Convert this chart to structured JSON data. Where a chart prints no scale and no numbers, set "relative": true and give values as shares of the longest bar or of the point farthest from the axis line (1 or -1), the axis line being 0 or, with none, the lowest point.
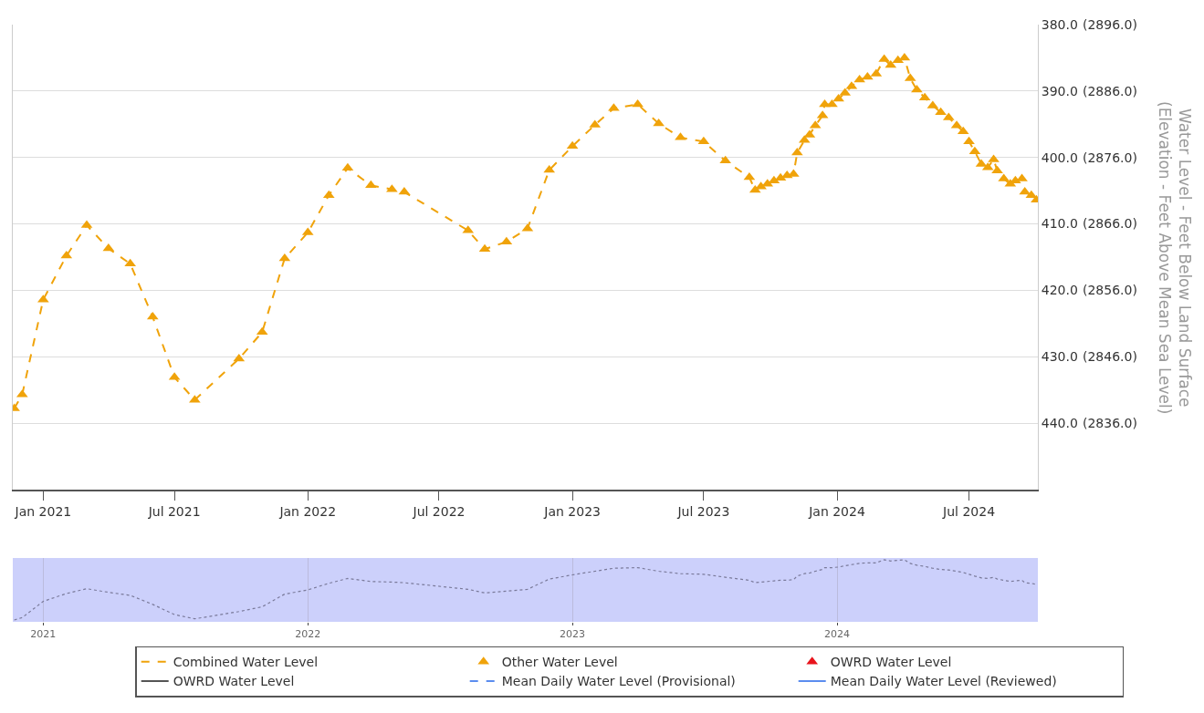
{
  "chart_data": [
    {
      "type": "line",
      "y2label": "Water Level - Feet Below Land Surface\n(Elevation - Feet Above Mean Sea Level)",
      "x": [
        "2020-11-22",
        "2020-12-03",
        "2021-01-01",
        "2021-02-02",
        "2021-03-02",
        "2021-04-01",
        "2021-05-01",
        "2021-06-01",
        "2021-07-01",
        "2021-07-29",
        "2021-09-28",
        "2021-10-30",
        "2021-11-30",
        "2022-01-01",
        "2022-01-30",
        "2022-02-25",
        "2022-03-29",
        "2022-04-27",
        "2022-05-14",
        "2022-08-10",
        "2022-09-02",
        "2022-10-02",
        "2022-10-31",
        "2022-11-30",
        "2023-01-01",
        "2023-02-01",
        "2023-02-27",
        "2023-04-01",
        "2023-04-30",
        "2023-05-30",
        "2023-07-01",
        "2023-07-31",
        "2023-09-02",
        "2023-09-10",
        "2023-09-18",
        "2023-09-27",
        "2023-10-06",
        "2023-10-15",
        "2023-10-24",
        "2023-11-02",
        "2023-11-07",
        "2023-11-17",
        "2023-11-24",
        "2023-12-02",
        "2023-12-12",
        "2023-12-15",
        "2023-12-25",
        "2024-01-03",
        "2024-01-12",
        "2024-01-21",
        "2024-02-01",
        "2024-02-12",
        "2024-02-24",
        "2024-03-06",
        "2024-03-15",
        "2024-03-25",
        "2024-04-03",
        "2024-04-11",
        "2024-04-20",
        "2024-05-01",
        "2024-05-12",
        "2024-05-23",
        "2024-06-03",
        "2024-06-14",
        "2024-06-23",
        "2024-07-01",
        "2024-07-09",
        "2024-07-18",
        "2024-07-27",
        "2024-08-04",
        "2024-08-09",
        "2024-08-18",
        "2024-08-27",
        "2024-09-03",
        "2024-09-12",
        "2024-09-16",
        "2024-09-25",
        "2024-10-02"
      ],
      "series": [
        {
          "name": "Combined Water Level",
          "color": "#f0a30a",
          "line_style": "dashed",
          "marker": "none",
          "values": [
            437.8,
            435.7,
            421.4,
            414.8,
            410.2,
            413.7,
            416.0,
            424.0,
            433.1,
            436.5,
            430.3,
            426.3,
            415.2,
            411.3,
            405.7,
            401.6,
            404.2,
            404.8,
            405.2,
            411.0,
            413.8,
            412.7,
            410.7,
            401.9,
            398.3,
            395.1,
            392.6,
            392.0,
            394.9,
            397.0,
            397.6,
            400.5,
            403.0,
            404.9,
            404.4,
            404.0,
            403.5,
            403.1,
            402.7,
            402.5,
            399.3,
            397.4,
            396.6,
            395.2,
            393.7,
            392.0,
            392.0,
            391.2,
            390.3,
            389.3,
            388.3,
            387.9,
            387.4,
            385.2,
            386.1,
            385.4,
            385.0,
            388.1,
            389.8,
            391.0,
            392.2,
            393.2,
            394.0,
            395.2,
            396.1,
            397.6,
            399.1,
            401.0,
            401.5,
            400.3,
            402.0,
            403.2,
            404.0,
            403.5,
            403.2,
            405.2,
            405.7,
            406.4
          ]
        },
        {
          "name": "Other Water Level",
          "color": "#f0a30a",
          "type": "scatter",
          "marker": "triangle",
          "values": [
            437.8,
            435.7,
            421.4,
            414.8,
            410.2,
            413.7,
            416.0,
            424.0,
            433.1,
            436.5,
            430.3,
            426.3,
            415.2,
            411.3,
            405.7,
            401.6,
            404.2,
            404.8,
            405.2,
            411.0,
            413.8,
            412.7,
            410.7,
            401.9,
            398.3,
            395.1,
            392.6,
            392.0,
            394.9,
            397.0,
            397.6,
            400.5,
            403.0,
            404.9,
            404.4,
            404.0,
            403.5,
            403.1,
            402.7,
            402.5,
            399.3,
            397.4,
            396.6,
            395.2,
            393.7,
            392.0,
            392.0,
            391.2,
            390.3,
            389.3,
            388.3,
            387.9,
            387.4,
            385.2,
            386.1,
            385.4,
            385.0,
            388.1,
            389.8,
            391.0,
            392.2,
            393.2,
            394.0,
            395.2,
            396.1,
            397.6,
            399.1,
            401.0,
            401.5,
            400.3,
            402.0,
            403.2,
            404.0,
            403.5,
            403.2,
            405.2,
            405.7,
            406.4
          ]
        },
        {
          "name": "OWRD Water Level",
          "color": "#e8141c",
          "type": "scatter",
          "marker": "triangle",
          "values": [
            null,
            null,
            null,
            null,
            null,
            null,
            null,
            null,
            null,
            null,
            null,
            null,
            null,
            null,
            null,
            null,
            null,
            null,
            null,
            null,
            null,
            null,
            null,
            null,
            null,
            null,
            null,
            null,
            null,
            null,
            null,
            null,
            null,
            null,
            null,
            null,
            null,
            null,
            null,
            null,
            null,
            null,
            null,
            null,
            null,
            null,
            null,
            null,
            null,
            null,
            null,
            null,
            null,
            null,
            null,
            null,
            null,
            null,
            null,
            null,
            null,
            null,
            null,
            null,
            null,
            null,
            null,
            null,
            null,
            null,
            null,
            null,
            null,
            null,
            null,
            null,
            null,
            null
          ]
        },
        {
          "name": "OWRD Water Level",
          "color": "#555555",
          "line_style": "solid",
          "marker": "none",
          "values": [
            null,
            null,
            null,
            null,
            null,
            null,
            null,
            null,
            null,
            null,
            null,
            null,
            null,
            null,
            null,
            null,
            null,
            null,
            null,
            null,
            null,
            null,
            null,
            null,
            null,
            null,
            null,
            null,
            null,
            null,
            null,
            null,
            null,
            null,
            null,
            null,
            null,
            null,
            null,
            null,
            null,
            null,
            null,
            null,
            null,
            null,
            null,
            null,
            null,
            null,
            null,
            null,
            null,
            null,
            null,
            null,
            null,
            null,
            null,
            null,
            null,
            null,
            null,
            null,
            null,
            null,
            null,
            null,
            null,
            null,
            null,
            null,
            null,
            null,
            null,
            null,
            null,
            null
          ]
        },
        {
          "name": "Mean Daily Water Level (Provisional)",
          "color": "#5b8def",
          "line_style": "dashed",
          "marker": "none",
          "values": [
            null,
            null,
            null,
            null,
            null,
            null,
            null,
            null,
            null,
            null,
            null,
            null,
            null,
            null,
            null,
            null,
            null,
            null,
            null,
            null,
            null,
            null,
            null,
            null,
            null,
            null,
            null,
            null,
            null,
            null,
            null,
            null,
            null,
            null,
            null,
            null,
            null,
            null,
            null,
            null,
            null,
            null,
            null,
            null,
            null,
            null,
            null,
            null,
            null,
            null,
            null,
            null,
            null,
            null,
            null,
            null,
            null,
            null,
            null,
            null,
            null,
            null,
            null,
            null,
            null,
            null,
            null,
            null,
            null,
            null,
            null,
            null,
            null,
            null,
            null,
            null,
            null,
            null
          ]
        },
        {
          "name": "Mean Daily Water Level (Reviewed)",
          "color": "#5b8def",
          "line_style": "solid",
          "marker": "none",
          "values": [
            null,
            null,
            null,
            null,
            null,
            null,
            null,
            null,
            null,
            null,
            null,
            null,
            null,
            null,
            null,
            null,
            null,
            null,
            null,
            null,
            null,
            null,
            null,
            null,
            null,
            null,
            null,
            null,
            null,
            null,
            null,
            null,
            null,
            null,
            null,
            null,
            null,
            null,
            null,
            null,
            null,
            null,
            null,
            null,
            null,
            null,
            null,
            null,
            null,
            null,
            null,
            null,
            null,
            null,
            null,
            null,
            null,
            null,
            null,
            null,
            null,
            null,
            null,
            null,
            null,
            null,
            null,
            null,
            null,
            null,
            null,
            null,
            null,
            null,
            null,
            null,
            null,
            null
          ]
        }
      ],
      "xlim": [
        "2020-11-20",
        "2024-10-04"
      ],
      "xticks": [
        {
          "value": "2021-01-01",
          "label": "Jan 2021"
        },
        {
          "value": "2021-07-01",
          "label": "Jul 2021"
        },
        {
          "value": "2022-01-01",
          "label": "Jan 2022"
        },
        {
          "value": "2022-07-01",
          "label": "Jul 2022"
        },
        {
          "value": "2023-01-01",
          "label": "Jan 2023"
        },
        {
          "value": "2023-07-01",
          "label": "Jul 2023"
        },
        {
          "value": "2024-01-01",
          "label": "Jan 2024"
        },
        {
          "value": "2024-07-01",
          "label": "Jul 2024"
        }
      ],
      "ylim": [
        450,
        380
      ],
      "yticks": [
        {
          "value": 380,
          "label": "380.0"
        },
        {
          "value": 390,
          "label": "390.0"
        },
        {
          "value": 400,
          "label": "400.0"
        },
        {
          "value": 410,
          "label": "410.0"
        },
        {
          "value": 420,
          "label": "420.0"
        },
        {
          "value": 430,
          "label": "430.0"
        },
        {
          "value": 440,
          "label": "440.0"
        }
      ],
      "y2lim": [
        2826,
        2896
      ],
      "y2ticks": [
        {
          "value": 2896,
          "label": "(2896.0)"
        },
        {
          "value": 2886,
          "label": "(2886.0)"
        },
        {
          "value": 2876,
          "label": "(2876.0)"
        },
        {
          "value": 2866,
          "label": "(2866.0)"
        },
        {
          "value": 2856,
          "label": "(2856.0)"
        },
        {
          "value": 2846,
          "label": "(2846.0)"
        },
        {
          "value": 2836,
          "label": "(2836.0)"
        }
      ],
      "grid": "y",
      "legend": "bottom"
    },
    {
      "type": "line",
      "x": [
        "2020-11-22",
        "2020-12-03",
        "2021-01-01",
        "2021-02-02",
        "2021-03-02",
        "2021-04-01",
        "2021-05-01",
        "2021-06-01",
        "2021-07-01",
        "2021-07-29",
        "2021-09-28",
        "2021-10-30",
        "2021-11-30",
        "2022-01-01",
        "2022-01-30",
        "2022-02-25",
        "2022-03-29",
        "2022-04-27",
        "2022-05-14",
        "2022-08-10",
        "2022-09-02",
        "2022-10-02",
        "2022-10-31",
        "2022-11-30",
        "2023-01-01",
        "2023-02-01",
        "2023-02-27",
        "2023-04-01",
        "2023-04-30",
        "2023-05-30",
        "2023-07-01",
        "2023-07-31",
        "2023-09-02",
        "2023-09-10",
        "2023-09-18",
        "2023-09-27",
        "2023-10-06",
        "2023-10-15",
        "2023-10-24",
        "2023-11-02",
        "2023-11-07",
        "2023-11-17",
        "2023-11-24",
        "2023-12-02",
        "2023-12-12",
        "2023-12-15",
        "2023-12-25",
        "2024-01-03",
        "2024-01-12",
        "2024-01-21",
        "2024-02-01",
        "2024-02-12",
        "2024-02-24",
        "2024-03-06",
        "2024-03-15",
        "2024-03-25",
        "2024-04-03",
        "2024-04-11",
        "2024-04-20",
        "2024-05-01",
        "2024-05-12",
        "2024-05-23",
        "2024-06-03",
        "2024-06-14",
        "2024-06-23",
        "2024-07-01",
        "2024-07-09",
        "2024-07-18",
        "2024-07-27",
        "2024-08-04",
        "2024-08-09",
        "2024-08-18",
        "2024-08-27",
        "2024-09-03",
        "2024-09-12",
        "2024-09-16",
        "2024-09-25",
        "2024-10-02"
      ],
      "series": [
        {
          "color": "#7a7a9a",
          "line_style": "dotted",
          "marker": "none",
          "values": [
            0,
            0.04,
            0.31,
            0.44,
            0.52,
            0.46,
            0.41,
            0.26,
            0.09,
            0.02,
            0.14,
            0.22,
            0.43,
            0.5,
            0.61,
            0.69,
            0.64,
            0.63,
            0.62,
            0.51,
            0.45,
            0.48,
            0.51,
            0.68,
            0.75,
            0.81,
            0.86,
            0.87,
            0.81,
            0.77,
            0.76,
            0.71,
            0.66,
            0.62,
            0.63,
            0.64,
            0.65,
            0.66,
            0.66,
            0.67,
            0.73,
            0.77,
            0.78,
            0.81,
            0.84,
            0.87,
            0.87,
            0.88,
            0.9,
            0.92,
            0.94,
            0.95,
            0.95,
            1.0,
            0.98,
            0.99,
            1,
            0.94,
            0.91,
            0.89,
            0.86,
            0.84,
            0.83,
            0.81,
            0.79,
            0.76,
            0.73,
            0.7,
            0.69,
            0.71,
            0.68,
            0.66,
            0.64,
            0.65,
            0.66,
            0.62,
            0.61,
            0.59
          ]
        }
      ],
      "xlim": [
        "2020-11-20",
        "2024-10-04"
      ],
      "xticks": [
        {
          "value": "2021-01-01",
          "label": "2021"
        },
        {
          "value": "2022-01-01",
          "label": "2022"
        },
        {
          "value": "2023-01-01",
          "label": "2023"
        },
        {
          "value": "2024-01-01",
          "label": "2024"
        }
      ],
      "relative": true,
      "tick_labels": "x",
      "grid": "x"
    }
  ]
}
